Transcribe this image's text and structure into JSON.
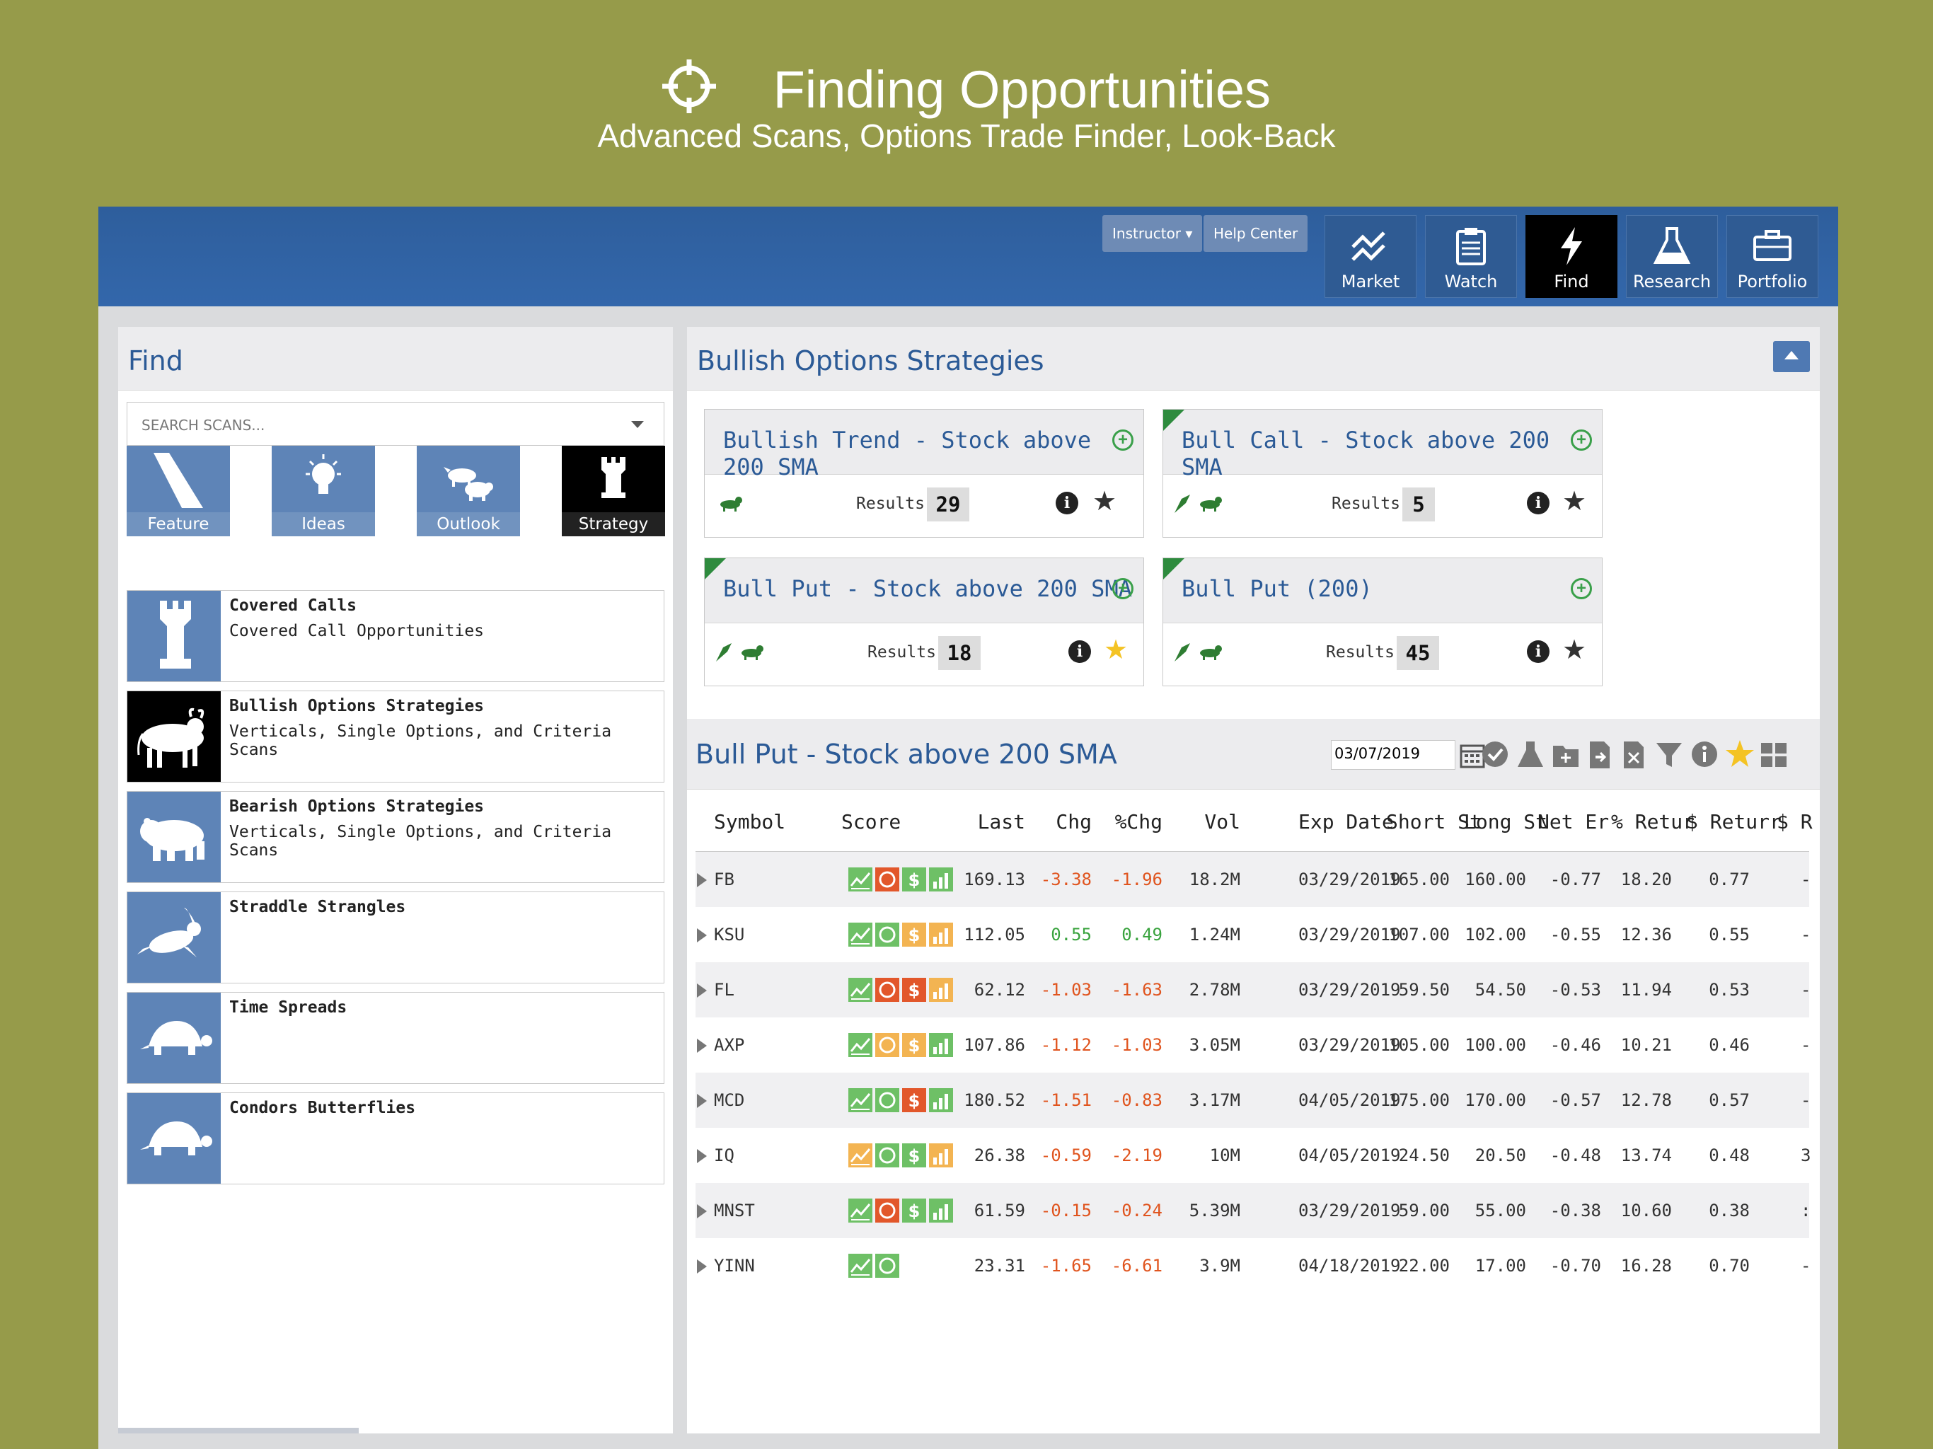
{
  "hero": {
    "title": "Finding Opportunities",
    "subtitle": "Advanced Scans, Options Trade Finder, Look-Back",
    "icon": "crosshair-icon"
  },
  "topbar": {
    "instructor": "Instructor ▾",
    "help": "Help Center",
    "nav": [
      {
        "label": "Market",
        "icon": "chart-line-icon"
      },
      {
        "label": "Watch",
        "icon": "clipboard-icon"
      },
      {
        "label": "Find",
        "icon": "lightning-icon",
        "active": true
      },
      {
        "label": "Research",
        "icon": "flask-icon"
      },
      {
        "label": "Portfolio",
        "icon": "briefcase-icon"
      }
    ]
  },
  "find": {
    "title": "Find",
    "search_placeholder": "SEARCH SCANS...",
    "categories": [
      {
        "label": "Feature",
        "icon": "spotlight-icon"
      },
      {
        "label": "Ideas",
        "icon": "lightbulb-icon"
      },
      {
        "label": "Outlook",
        "icon": "bull-bear-icon"
      },
      {
        "label": "Strategy",
        "icon": "rook-icon",
        "active": true
      }
    ],
    "scans": [
      {
        "name": "Covered Calls",
        "desc": "Covered Call Opportunities",
        "icon": "rook-icon"
      },
      {
        "name": "Bullish Options Strategies",
        "desc": "Verticals, Single Options, and Criteria Scans",
        "icon": "bull-icon",
        "active": true
      },
      {
        "name": "Bearish Options Strategies",
        "desc": "Verticals, Single Options, and Criteria Scans",
        "icon": "bear-icon"
      },
      {
        "name": "Straddle Strangles",
        "desc": "",
        "icon": "rabbit-icon"
      },
      {
        "name": "Time Spreads",
        "desc": "",
        "icon": "turtle-icon"
      },
      {
        "name": "Condors Butterflies",
        "desc": "",
        "icon": "turtle-icon"
      }
    ]
  },
  "strategies": {
    "title": "Bullish Options Strategies",
    "results_label": "Results",
    "cards": [
      {
        "title": "Bullish Trend - Stock above 200 SMA",
        "count": "29",
        "flag": false,
        "favorite": false
      },
      {
        "title": "Bull Call - Stock above 200 SMA",
        "count": "5",
        "flag": true,
        "favorite": false
      },
      {
        "title": "Bull Put - Stock above 200 SMA",
        "count": "18",
        "flag": true,
        "favorite": true
      },
      {
        "title": "Bull Put (200)",
        "count": "45",
        "flag": true,
        "favorite": false
      }
    ]
  },
  "results": {
    "title": "Bull Put - Stock above 200 SMA",
    "date": "03/07/2019",
    "columns": [
      "Symbol",
      "Score",
      "Last",
      "Chg",
      "%Chg",
      "Vol",
      "Exp Date",
      "Short St",
      "Long St",
      "Net Er",
      "% Retur",
      "$ Returr",
      "$ R"
    ],
    "rows": [
      {
        "symbol": "FB",
        "score": [
          "g",
          "r",
          "g",
          "g"
        ],
        "last": "169.13",
        "chg": "-3.38",
        "pchg": "-1.96",
        "vol": "18.2M",
        "exp": "03/29/2019",
        "short": "165.00",
        "long": "160.00",
        "net": "-0.77",
        "pret": "18.20",
        "dret": "0.77",
        "extra": "-"
      },
      {
        "symbol": "KSU",
        "score": [
          "g",
          "g",
          "o",
          "o"
        ],
        "last": "112.05",
        "chg": "0.55",
        "pchg": "0.49",
        "vol": "1.24M",
        "exp": "03/29/2019",
        "short": "107.00",
        "long": "102.00",
        "net": "-0.55",
        "pret": "12.36",
        "dret": "0.55",
        "extra": "-"
      },
      {
        "symbol": "FL",
        "score": [
          "g",
          "r",
          "r",
          "o"
        ],
        "last": "62.12",
        "chg": "-1.03",
        "pchg": "-1.63",
        "vol": "2.78M",
        "exp": "03/29/2019",
        "short": "59.50",
        "long": "54.50",
        "net": "-0.53",
        "pret": "11.94",
        "dret": "0.53",
        "extra": "-"
      },
      {
        "symbol": "AXP",
        "score": [
          "g",
          "o",
          "o",
          "g"
        ],
        "last": "107.86",
        "chg": "-1.12",
        "pchg": "-1.03",
        "vol": "3.05M",
        "exp": "03/29/2019",
        "short": "105.00",
        "long": "100.00",
        "net": "-0.46",
        "pret": "10.21",
        "dret": "0.46",
        "extra": "-"
      },
      {
        "symbol": "MCD",
        "score": [
          "g",
          "g",
          "r",
          "g"
        ],
        "last": "180.52",
        "chg": "-1.51",
        "pchg": "-0.83",
        "vol": "3.17M",
        "exp": "04/05/2019",
        "short": "175.00",
        "long": "170.00",
        "net": "-0.57",
        "pret": "12.78",
        "dret": "0.57",
        "extra": "-"
      },
      {
        "symbol": "IQ",
        "score": [
          "o",
          "g",
          "g",
          "o"
        ],
        "last": "26.38",
        "chg": "-0.59",
        "pchg": "-2.19",
        "vol": "10M",
        "exp": "04/05/2019",
        "short": "24.50",
        "long": "20.50",
        "net": "-0.48",
        "pret": "13.74",
        "dret": "0.48",
        "extra": "3"
      },
      {
        "symbol": "MNST",
        "score": [
          "g",
          "r",
          "g",
          "g"
        ],
        "last": "61.59",
        "chg": "-0.15",
        "pchg": "-0.24",
        "vol": "5.39M",
        "exp": "03/29/2019",
        "short": "59.00",
        "long": "55.00",
        "net": "-0.38",
        "pret": "10.60",
        "dret": "0.38",
        "extra": ":"
      },
      {
        "symbol": "YINN",
        "score": [
          "g",
          "g"
        ],
        "last": "23.31",
        "chg": "-1.65",
        "pchg": "-6.61",
        "vol": "3.9M",
        "exp": "04/18/2019",
        "short": "22.00",
        "long": "17.00",
        "net": "-0.70",
        "pret": "16.28",
        "dret": "0.70",
        "extra": "-"
      }
    ]
  },
  "colors": {
    "background": "#969b4a",
    "brand_blue": "#2b5a96",
    "score_green": "#6ec066",
    "score_red": "#e2572b",
    "score_orange": "#f3b452",
    "negative": "#e0541e",
    "positive": "#39a33e",
    "favorite": "#f4c324"
  }
}
